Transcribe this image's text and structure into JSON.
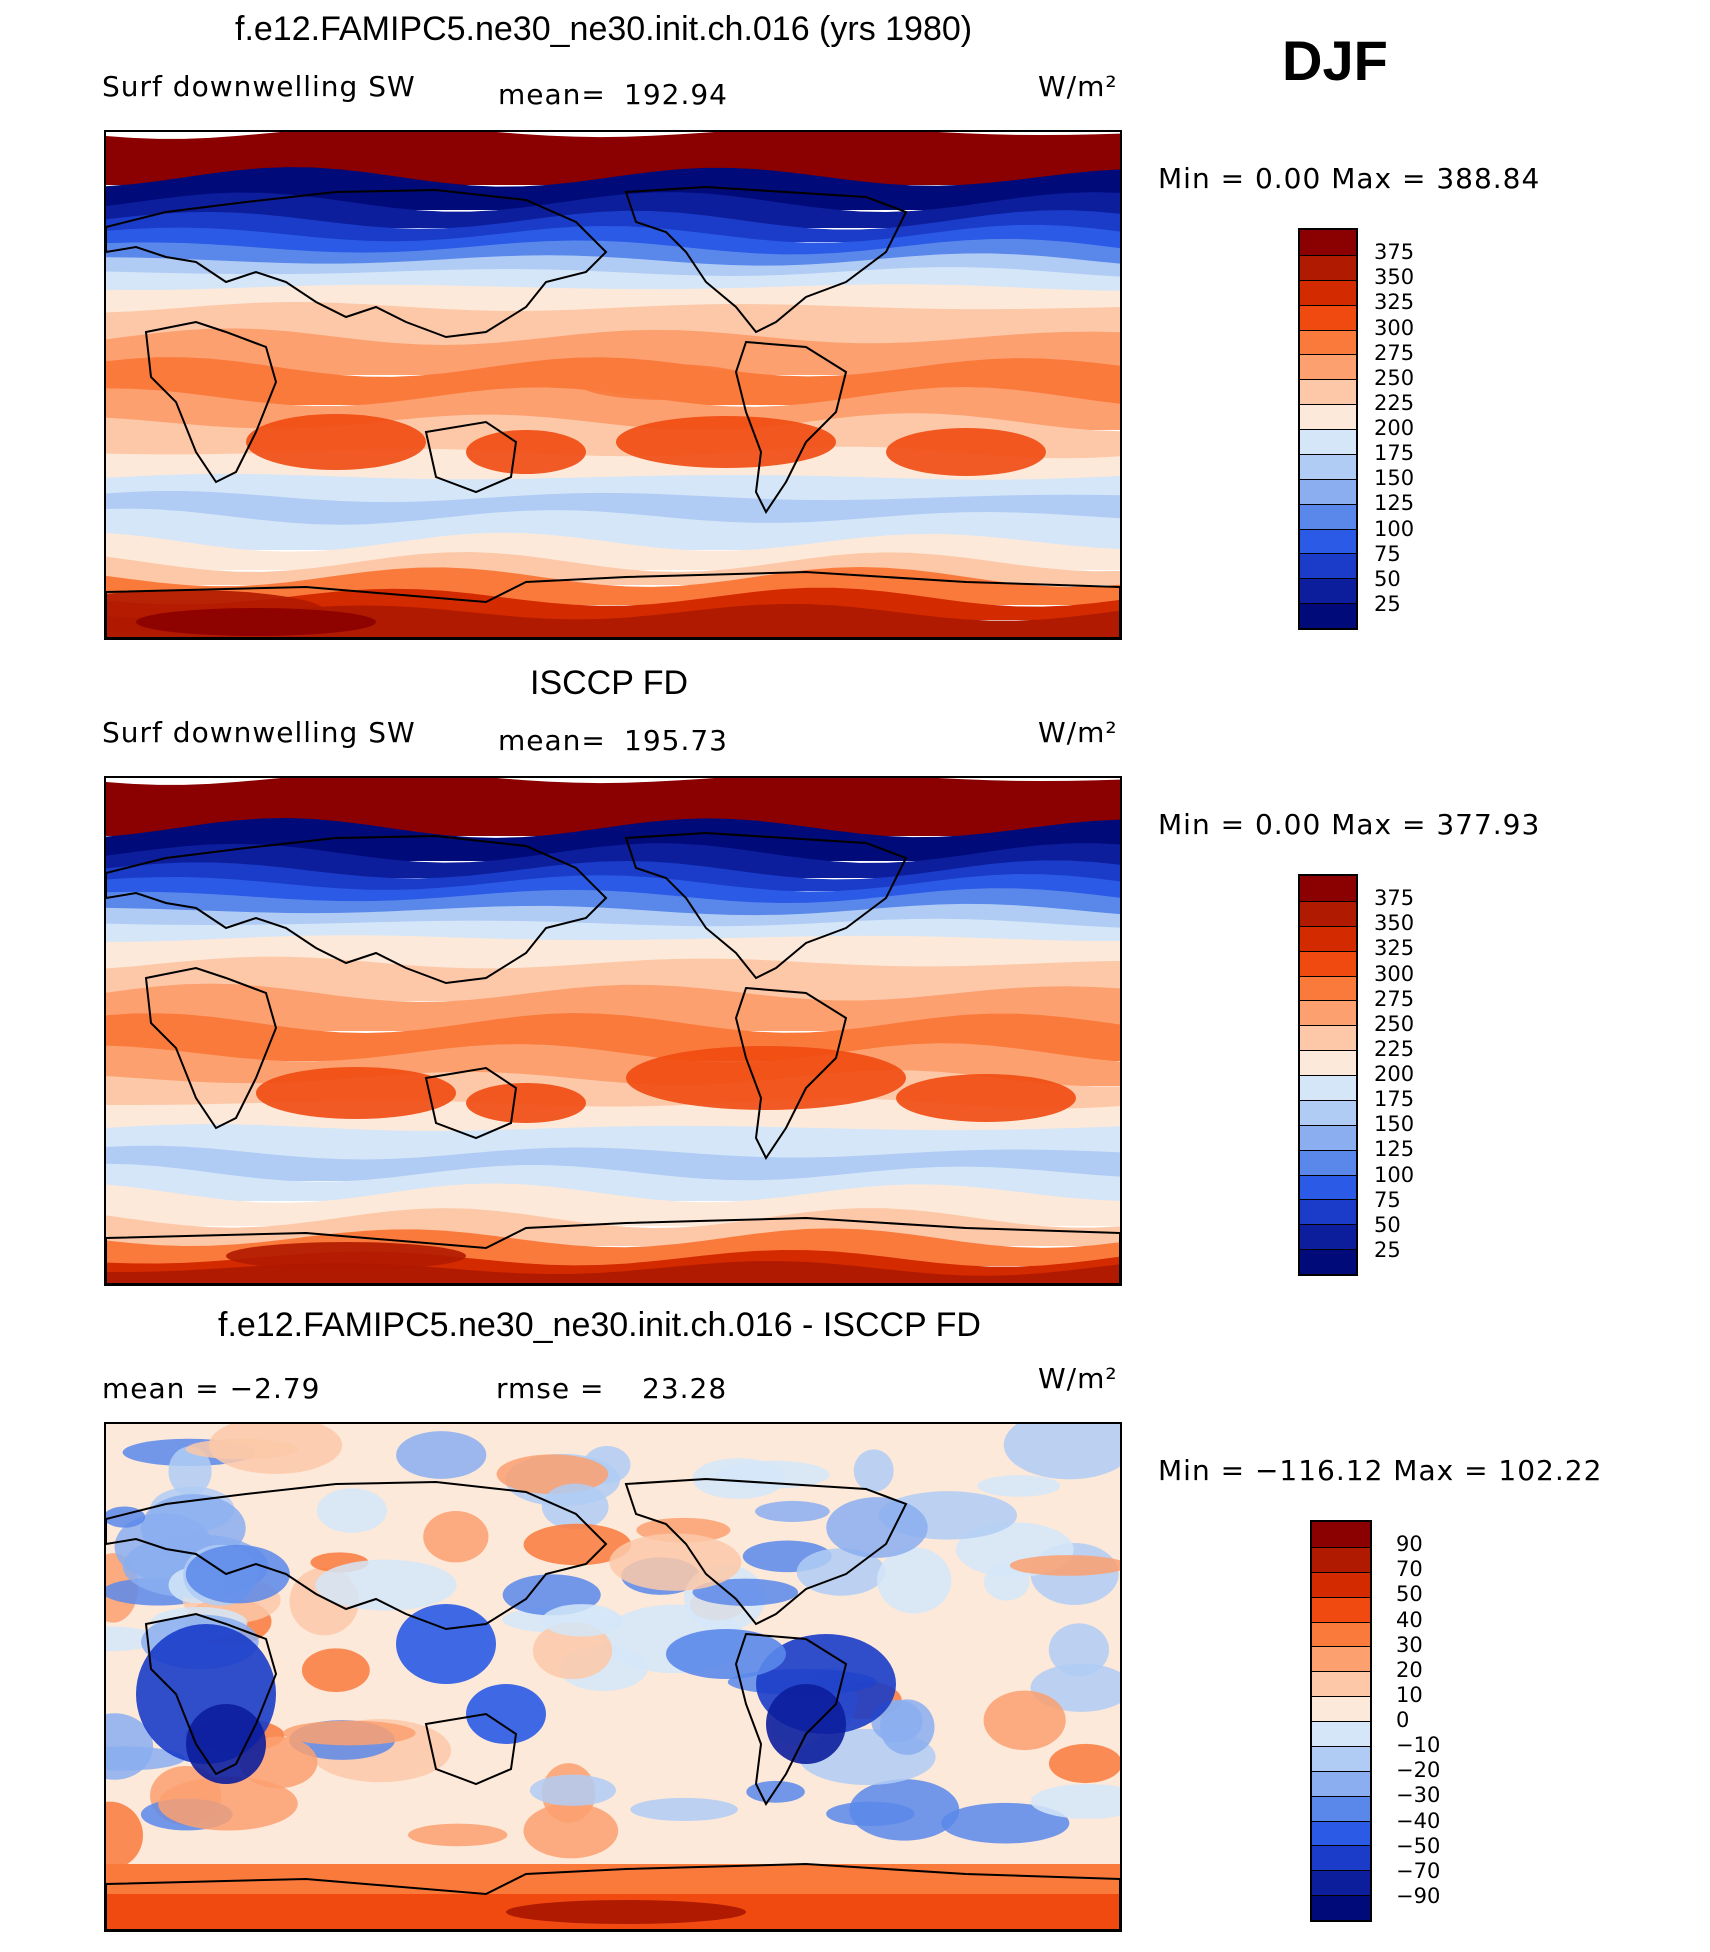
{
  "season": "DJF",
  "panels": [
    {
      "title": "f.e12.FAMIPC5.ne30_ne30.init.ch.016 (yrs 1980)",
      "left_label": "Surf downwelling SW",
      "center_label": "mean=",
      "center_value": "192.94",
      "units": "W/m²",
      "minmax": "Min =     0.00 Max = 388.84",
      "kind": "field"
    },
    {
      "title": "ISCCP FD",
      "left_label": "Surf downwelling SW",
      "center_label": "mean=",
      "center_value": "195.73",
      "units": "W/m²",
      "minmax": "Min =     0.00 Max = 377.93",
      "kind": "field"
    },
    {
      "title": "f.e12.FAMIPC5.ne30_ne30.init.ch.016 - ISCCP FD",
      "left_label": "mean =   −2.79",
      "center_label": "rmse =",
      "center_value": "23.28",
      "units": "W/m²",
      "minmax": "Min = −116.12 Max = 102.22",
      "kind": "diff"
    }
  ],
  "colorbar_field": {
    "levels": [
      "375",
      "350",
      "325",
      "300",
      "275",
      "250",
      "225",
      "200",
      "175",
      "150",
      "125",
      "100",
      "75",
      "50",
      "25"
    ],
    "colors": [
      "#8b0000",
      "#b01a00",
      "#d42a00",
      "#f04a10",
      "#fa7a3c",
      "#fca070",
      "#fcc8a8",
      "#fde9d9",
      "#d4e6f8",
      "#b0ccf4",
      "#8aaef0",
      "#5a88ea",
      "#2a5ae6",
      "#1a3cc8",
      "#0c1e9c",
      "#000a78"
    ]
  },
  "colorbar_diff": {
    "levels": [
      "90",
      "70",
      "50",
      "40",
      "30",
      "20",
      "10",
      "0",
      "−10",
      "−20",
      "−30",
      "−40",
      "−50",
      "−70",
      "−90"
    ],
    "colors": [
      "#8b0000",
      "#b01a00",
      "#d42a00",
      "#f04a10",
      "#fa7a3c",
      "#fca070",
      "#fcc8a8",
      "#fde9d9",
      "#d4e6f8",
      "#b0ccf4",
      "#8aaef0",
      "#5a88ea",
      "#2a5ae6",
      "#1a3cc8",
      "#0c1e9c",
      "#000a78"
    ]
  }
}
